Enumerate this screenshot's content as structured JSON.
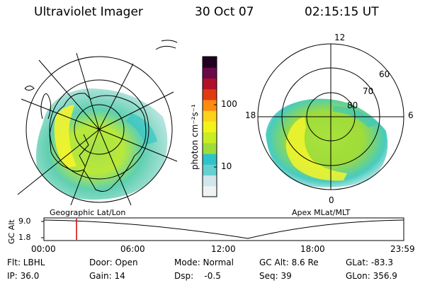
{
  "header": {
    "title": "Ultraviolet Imager",
    "date": "30 Oct 07",
    "time": "02:15:15 UT"
  },
  "left_map": {
    "caption": "Geographic Lat/Lon"
  },
  "right_map": {
    "caption": "Apex MLat/MLT",
    "mlt_labels": [
      "12",
      "18",
      "6",
      "0"
    ],
    "lat_labels": [
      "60",
      "70",
      "80"
    ]
  },
  "colorbar": {
    "label": "photon cm⁻²s⁻¹",
    "ticks": [
      "100",
      "10"
    ],
    "colors": [
      "#eef4f4",
      "#cfe6ea",
      "#66d0d0",
      "#2fc3c9",
      "#9fdc3a",
      "#c8ee22",
      "#f3f31a",
      "#ffd21a",
      "#ff8a10",
      "#e23a10",
      "#b0102a",
      "#6a0a4a",
      "#200020"
    ]
  },
  "timeline": {
    "ylabel": "GC Alt",
    "y_ticks": [
      "9.0",
      "1.8"
    ],
    "x_ticks": [
      "00:00",
      "06:00",
      "12:00",
      "18:00",
      "23:59"
    ],
    "current_marker_time": "02:15"
  },
  "footer": {
    "row1": [
      "Flt: LBHL",
      "Door: Open",
      "Mode: Normal",
      "GC Alt: 8.6 Re",
      "GLat: -83.3"
    ],
    "row2": [
      "IP: 36.0",
      "Gain: 14",
      "Dsp:    -0.5",
      "Seq: 39",
      "GLon: 356.9"
    ]
  }
}
